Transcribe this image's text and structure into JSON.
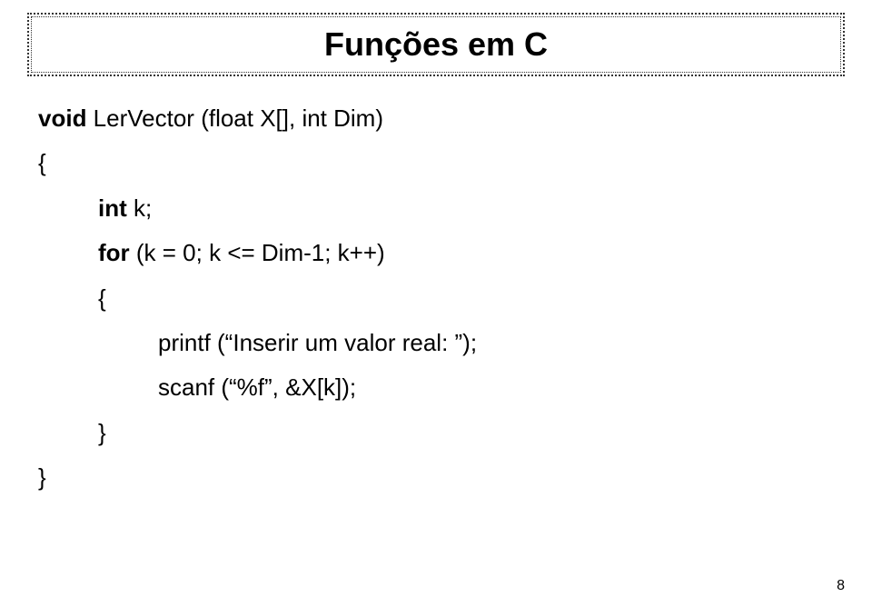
{
  "title": "Funções em C",
  "code": {
    "line1_kw": "void",
    "line1_rest": " LerVector (float X[], int Dim)",
    "line2": "{",
    "line3_kw": "int",
    "line3_rest": "  k;",
    "line4_kw": "for",
    "line4_rest": " (k = 0; k <= Dim-1; k++)",
    "line5": "{",
    "line6": "printf (“Inserir um valor real: ”);",
    "line7": "scanf (“%f”, &X[k]);",
    "line8": "}",
    "line9": "}"
  },
  "page_number": "8"
}
